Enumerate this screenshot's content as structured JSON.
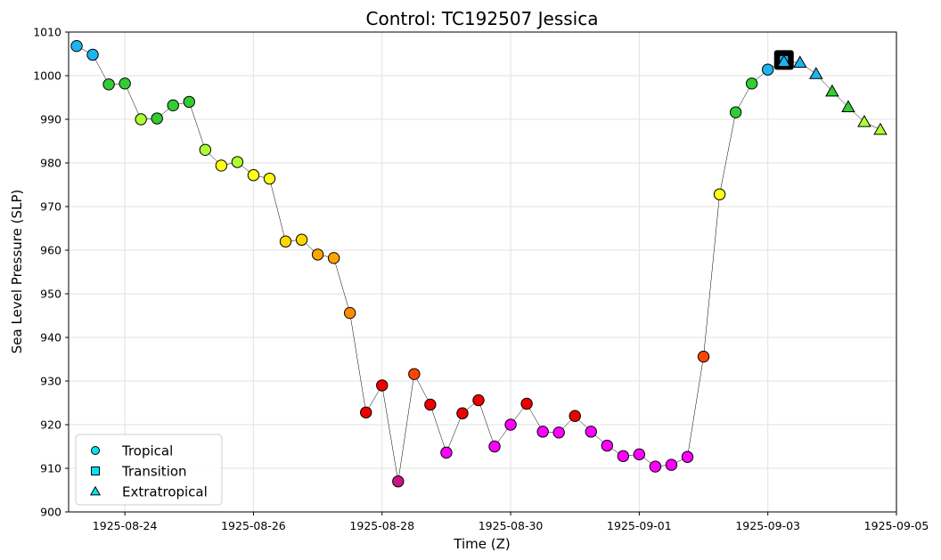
{
  "chart_data": {
    "type": "scatter",
    "title": "Control: TC192507 Jessica",
    "xlabel": "Time (Z)",
    "ylabel": "Sea Level Pressure (SLP)",
    "xlim": [
      "1925-08-23 03:00",
      "1925-09-05 00:00"
    ],
    "ylim": [
      900,
      1010
    ],
    "x_ticks": [
      "1925-08-24",
      "1925-08-26",
      "1925-08-28",
      "1925-08-30",
      "1925-09-01",
      "1925-09-03",
      "1925-09-05"
    ],
    "y_ticks": [
      900,
      910,
      920,
      930,
      940,
      950,
      960,
      970,
      980,
      990,
      1000,
      1010
    ],
    "grid": true,
    "legend_position": "lower-left",
    "legend": [
      {
        "label": "Tropical",
        "marker": "circle"
      },
      {
        "label": "Transition",
        "marker": "square"
      },
      {
        "label": "Extratropical",
        "marker": "triangle"
      }
    ],
    "points": [
      {
        "t": "1925-08-23 06:00",
        "slp": 1006.8,
        "phase": "Tropical",
        "color": "#1eb4f0"
      },
      {
        "t": "1925-08-23 12:00",
        "slp": 1004.8,
        "phase": "Tropical",
        "color": "#1eb4f0"
      },
      {
        "t": "1925-08-23 18:00",
        "slp": 998.0,
        "phase": "Tropical",
        "color": "#32cd32"
      },
      {
        "t": "1925-08-24 00:00",
        "slp": 998.2,
        "phase": "Tropical",
        "color": "#32cd32"
      },
      {
        "t": "1925-08-24 06:00",
        "slp": 990.0,
        "phase": "Tropical",
        "color": "#adff2f"
      },
      {
        "t": "1925-08-24 12:00",
        "slp": 990.2,
        "phase": "Tropical",
        "color": "#32cd32"
      },
      {
        "t": "1925-08-24 18:00",
        "slp": 993.2,
        "phase": "Tropical",
        "color": "#32cd32"
      },
      {
        "t": "1925-08-25 00:00",
        "slp": 994.0,
        "phase": "Tropical",
        "color": "#32cd32"
      },
      {
        "t": "1925-08-25 06:00",
        "slp": 983.0,
        "phase": "Tropical",
        "color": "#adff2f"
      },
      {
        "t": "1925-08-25 12:00",
        "slp": 979.4,
        "phase": "Tropical",
        "color": "#ffff14"
      },
      {
        "t": "1925-08-25 18:00",
        "slp": 980.2,
        "phase": "Tropical",
        "color": "#adff2f"
      },
      {
        "t": "1925-08-26 00:00",
        "slp": 977.2,
        "phase": "Tropical",
        "color": "#ffff14"
      },
      {
        "t": "1925-08-26 06:00",
        "slp": 976.4,
        "phase": "Tropical",
        "color": "#ffff14"
      },
      {
        "t": "1925-08-26 12:00",
        "slp": 962.0,
        "phase": "Tropical",
        "color": "#ffd700"
      },
      {
        "t": "1925-08-26 18:00",
        "slp": 962.4,
        "phase": "Tropical",
        "color": "#ffd700"
      },
      {
        "t": "1925-08-27 00:00",
        "slp": 959.0,
        "phase": "Tropical",
        "color": "#ffa500"
      },
      {
        "t": "1925-08-27 06:00",
        "slp": 958.2,
        "phase": "Tropical",
        "color": "#ffa500"
      },
      {
        "t": "1925-08-27 12:00",
        "slp": 945.6,
        "phase": "Tropical",
        "color": "#ff8c00"
      },
      {
        "t": "1925-08-27 18:00",
        "slp": 922.8,
        "phase": "Tropical",
        "color": "#ee0000"
      },
      {
        "t": "1925-08-28 00:00",
        "slp": 929.0,
        "phase": "Tropical",
        "color": "#ee0000"
      },
      {
        "t": "1925-08-28 06:00",
        "slp": 907.0,
        "phase": "Tropical",
        "color": "#c71585"
      },
      {
        "t": "1925-08-28 12:00",
        "slp": 931.6,
        "phase": "Tropical",
        "color": "#ff4500"
      },
      {
        "t": "1925-08-28 18:00",
        "slp": 924.6,
        "phase": "Tropical",
        "color": "#ee0000"
      },
      {
        "t": "1925-08-29 00:00",
        "slp": 913.6,
        "phase": "Tropical",
        "color": "#ff00ff"
      },
      {
        "t": "1925-08-29 06:00",
        "slp": 922.6,
        "phase": "Tropical",
        "color": "#ee0000"
      },
      {
        "t": "1925-08-29 12:00",
        "slp": 925.6,
        "phase": "Tropical",
        "color": "#ee0000"
      },
      {
        "t": "1925-08-29 18:00",
        "slp": 915.0,
        "phase": "Tropical",
        "color": "#ff00ff"
      },
      {
        "t": "1925-08-30 00:00",
        "slp": 920.0,
        "phase": "Tropical",
        "color": "#ff00ff"
      },
      {
        "t": "1925-08-30 06:00",
        "slp": 924.8,
        "phase": "Tropical",
        "color": "#ee0000"
      },
      {
        "t": "1925-08-30 12:00",
        "slp": 918.4,
        "phase": "Tropical",
        "color": "#ff00ff"
      },
      {
        "t": "1925-08-30 18:00",
        "slp": 918.2,
        "phase": "Tropical",
        "color": "#ff00ff"
      },
      {
        "t": "1925-08-31 00:00",
        "slp": 922.0,
        "phase": "Tropical",
        "color": "#ee0000"
      },
      {
        "t": "1925-08-31 06:00",
        "slp": 918.4,
        "phase": "Tropical",
        "color": "#ff00ff"
      },
      {
        "t": "1925-08-31 12:00",
        "slp": 915.2,
        "phase": "Tropical",
        "color": "#ff00ff"
      },
      {
        "t": "1925-08-31 18:00",
        "slp": 912.8,
        "phase": "Tropical",
        "color": "#ff00ff"
      },
      {
        "t": "1925-09-01 00:00",
        "slp": 913.2,
        "phase": "Tropical",
        "color": "#ff00ff"
      },
      {
        "t": "1925-09-01 06:00",
        "slp": 910.4,
        "phase": "Tropical",
        "color": "#ff00ff"
      },
      {
        "t": "1925-09-01 12:00",
        "slp": 910.8,
        "phase": "Tropical",
        "color": "#ff00ff"
      },
      {
        "t": "1925-09-01 18:00",
        "slp": 912.6,
        "phase": "Tropical",
        "color": "#ff00ff"
      },
      {
        "t": "1925-09-02 00:00",
        "slp": 935.6,
        "phase": "Tropical",
        "color": "#ff4500"
      },
      {
        "t": "1925-09-02 06:00",
        "slp": 972.8,
        "phase": "Tropical",
        "color": "#ffff14"
      },
      {
        "t": "1925-09-02 12:00",
        "slp": 991.6,
        "phase": "Tropical",
        "color": "#32cd32"
      },
      {
        "t": "1925-09-02 18:00",
        "slp": 998.2,
        "phase": "Tropical",
        "color": "#32cd32"
      },
      {
        "t": "1925-09-03 00:00",
        "slp": 1001.4,
        "phase": "Tropical",
        "color": "#1eb4f0"
      },
      {
        "t": "1925-09-03 06:00",
        "slp": 1003.6,
        "phase": "Transition",
        "color": "#1eb4f0"
      },
      {
        "t": "1925-09-03 06:00",
        "slp": 1003.2,
        "phase": "Extratropical",
        "color": "#1eb4f0"
      },
      {
        "t": "1925-09-03 12:00",
        "slp": 1003.0,
        "phase": "Extratropical",
        "color": "#1eb4f0"
      },
      {
        "t": "1925-09-03 18:00",
        "slp": 1000.4,
        "phase": "Extratropical",
        "color": "#1eb4f0"
      },
      {
        "t": "1925-09-04 00:00",
        "slp": 996.4,
        "phase": "Extratropical",
        "color": "#32cd32"
      },
      {
        "t": "1925-09-04 06:00",
        "slp": 992.8,
        "phase": "Extratropical",
        "color": "#32cd32"
      },
      {
        "t": "1925-09-04 12:00",
        "slp": 989.4,
        "phase": "Extratropical",
        "color": "#adff2f"
      },
      {
        "t": "1925-09-04 18:00",
        "slp": 987.6,
        "phase": "Extratropical",
        "color": "#adff2f"
      }
    ]
  }
}
